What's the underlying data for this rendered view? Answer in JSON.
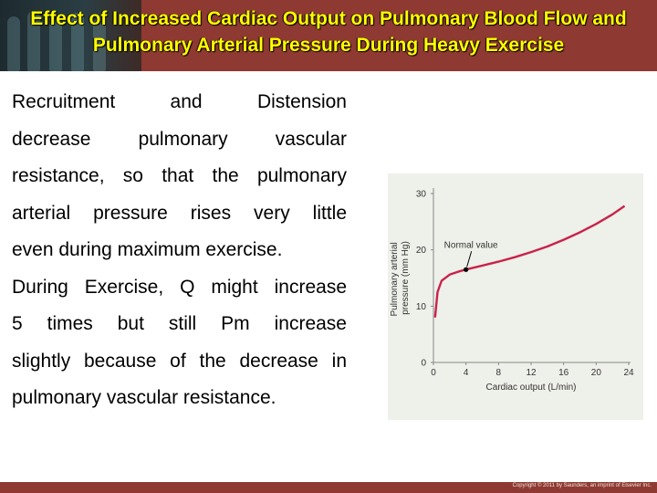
{
  "slide": {
    "title": "Effect of Increased Cardiac Output on Pulmonary Blood Flow and Pulmonary Arterial Pressure During Heavy Exercise",
    "body_lines": [
      "Recruitment and Distension",
      "decrease pulmonary vascular",
      "resistance, so that the pulmonary",
      "arterial pressure rises very little",
      "even during maximum exercise.",
      "During Exercise, Q might increase",
      "5 times but still Pm increase",
      "slightly because of the decrease in",
      "pulmonary vascular resistance."
    ],
    "copyright": "Copyright © 2011 by Saunders, an imprint of Elsevier Inc."
  },
  "colors": {
    "header_bg": "#8e3a32",
    "title_color": "#ffff00",
    "curve_color": "#c8234a",
    "panel_bg": "#eef0ea"
  },
  "chart_data": {
    "type": "line",
    "xlabel": "Cardiac output (L/min)",
    "ylabel": "Pulmonary arterial pressure (mm Hg)",
    "x_ticks": [
      0,
      4,
      8,
      12,
      16,
      20,
      24
    ],
    "y_ticks": [
      0,
      10,
      20,
      30
    ],
    "xlim": [
      0,
      24
    ],
    "ylim": [
      0,
      30
    ],
    "annotation": {
      "text": "Normal value",
      "x": 4,
      "y": 16.5
    },
    "series": [
      {
        "x": [
          0.2,
          0.5,
          1,
          2,
          3,
          4,
          6,
          8,
          10,
          12,
          14,
          16,
          18,
          20,
          22,
          23.5
        ],
        "y": [
          8,
          12.5,
          14.5,
          15.6,
          16.1,
          16.5,
          17.2,
          17.9,
          18.7,
          19.6,
          20.6,
          21.8,
          23.1,
          24.6,
          26.3,
          27.8
        ]
      }
    ]
  }
}
